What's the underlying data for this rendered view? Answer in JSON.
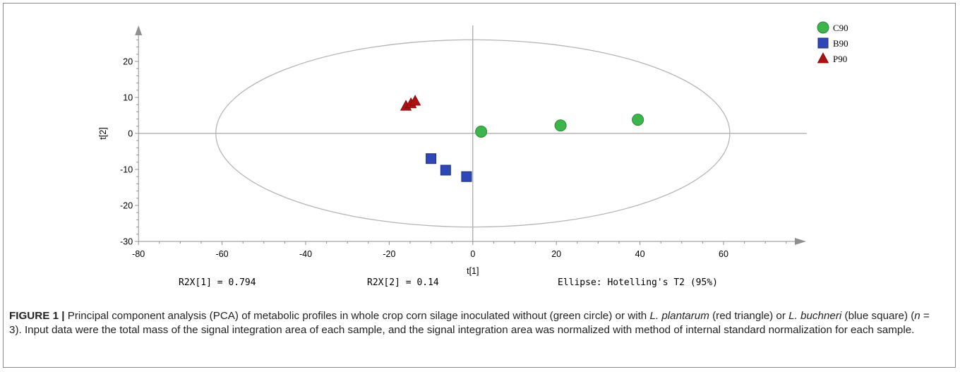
{
  "chart_data": {
    "type": "scatter",
    "xlabel": "t[1]",
    "ylabel": "t[2]",
    "xlim": [
      -80,
      80
    ],
    "ylim": [
      -30,
      30
    ],
    "xticks": [
      "-80",
      "-60",
      "-40",
      "-20",
      "0",
      "20",
      "40",
      "60"
    ],
    "yticks": [
      "-30",
      "-20",
      "-10",
      "0",
      "10",
      "20"
    ],
    "series": [
      {
        "name": "C90",
        "marker": "circle",
        "color": "#3cb54a",
        "points": [
          [
            2,
            0.5
          ],
          [
            21,
            2.2
          ],
          [
            39.5,
            3.8
          ]
        ]
      },
      {
        "name": "B90",
        "marker": "square",
        "color": "#2e46b8",
        "points": [
          [
            -10,
            -7
          ],
          [
            -6.5,
            -10.2
          ],
          [
            -1.5,
            -12
          ]
        ]
      },
      {
        "name": "P90",
        "marker": "triangle",
        "color": "#b01010",
        "points": [
          [
            -16,
            7.6
          ],
          [
            -14.8,
            8.3
          ],
          [
            -13.8,
            9.0
          ]
        ]
      }
    ],
    "ellipse": {
      "cx": 0,
      "cy": 0,
      "rx": 61.5,
      "ry": 26
    },
    "legend_position": "top-right",
    "grid": false
  },
  "stats": {
    "r2x1": "R2X[1] = 0.794",
    "r2x2": "R2X[2] = 0.14",
    "ellipse": "Ellipse: Hotelling's T2 (95%)"
  },
  "caption": {
    "label": "FIGURE 1 |",
    "seg1": " Principal component analysis (PCA) of metabolic profiles in whole crop corn silage inoculated without (green circle) or with ",
    "lp": "L. plantarum",
    "seg2": " (red triangle) or ",
    "lb": "L. buchneri",
    "seg3": " (blue square) (",
    "n": "n",
    "seg4": " = 3). Input data were the total mass of the signal integration area of each sample, and the signal integration area was normalized with method of internal standard normalization for each sample."
  }
}
